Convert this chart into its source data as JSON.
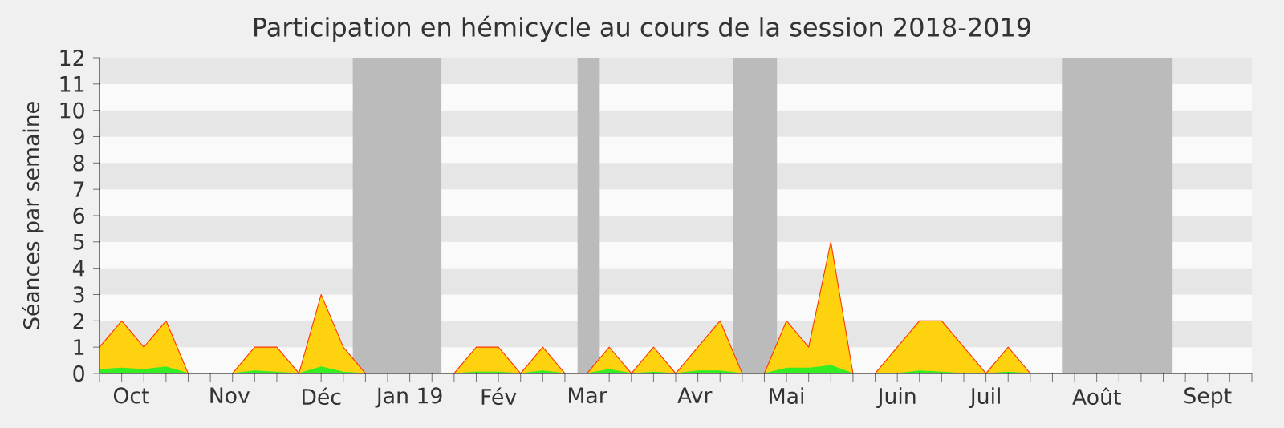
{
  "chart_data": {
    "type": "area",
    "title": "Participation en hémicycle au cours de la session 2018-2019",
    "ylabel": "Séances par semaine",
    "x": [
      "2018-10-01",
      "2018-10-08",
      "2018-10-15",
      "2018-10-22",
      "2018-10-29",
      "2018-11-05",
      "2018-11-12",
      "2018-11-19",
      "2018-11-26",
      "2018-12-03",
      "2018-12-10",
      "2018-12-17",
      "2018-12-24",
      "2018-12-31",
      "2019-01-07",
      "2019-01-14",
      "2019-01-21",
      "2019-01-28",
      "2019-02-04",
      "2019-02-11",
      "2019-02-18",
      "2019-02-25",
      "2019-03-04",
      "2019-03-11",
      "2019-03-18",
      "2019-03-25",
      "2019-04-01",
      "2019-04-08",
      "2019-04-15",
      "2019-04-22",
      "2019-04-29",
      "2019-05-06",
      "2019-05-13",
      "2019-05-20",
      "2019-05-27",
      "2019-06-03",
      "2019-06-10",
      "2019-06-17",
      "2019-06-24",
      "2019-07-01",
      "2019-07-08",
      "2019-07-15",
      "2019-07-22",
      "2019-07-29",
      "2019-08-05",
      "2019-08-12",
      "2019-08-19",
      "2019-08-26",
      "2019-09-02",
      "2019-09-09",
      "2019-09-16",
      "2019-09-23",
      "2019-09-30"
    ],
    "series": [
      {
        "color": "#ffd20f",
        "values": [
          1,
          2,
          1,
          2,
          0,
          0,
          0,
          1,
          1,
          0,
          3,
          1,
          0,
          0,
          0,
          0,
          0,
          1,
          1,
          0,
          1,
          0,
          0,
          1,
          0,
          1,
          0,
          1,
          2,
          0,
          0,
          2,
          1,
          5,
          0,
          0,
          1,
          2,
          2,
          1,
          0,
          1,
          0,
          0,
          0,
          0,
          0,
          0,
          0,
          0,
          0,
          0,
          0
        ]
      },
      {
        "color": "#33ee22",
        "values": [
          0.15,
          0.2,
          0.15,
          0.25,
          0,
          0,
          0,
          0.1,
          0.05,
          0,
          0.25,
          0.05,
          0,
          0,
          0,
          0,
          0,
          0.05,
          0.05,
          0,
          0.1,
          0,
          0,
          0.15,
          0,
          0.05,
          0,
          0.1,
          0.1,
          0,
          0,
          0.2,
          0.2,
          0.3,
          0,
          0,
          0,
          0.1,
          0.05,
          0,
          0,
          0.05,
          0,
          0,
          0,
          0,
          0,
          0,
          0,
          0,
          0,
          0,
          0
        ]
      }
    ],
    "xlim": [
      "2018-10-01",
      "2019-09-30"
    ],
    "ylim": [
      0,
      12
    ],
    "yticks": [
      0,
      1,
      2,
      3,
      4,
      5,
      6,
      7,
      8,
      9,
      10,
      11,
      12
    ],
    "xticks": [
      {
        "value": "2018-10-11",
        "label": "Oct"
      },
      {
        "value": "2018-11-11",
        "label": "Nov"
      },
      {
        "value": "2018-12-10",
        "label": "Déc"
      },
      {
        "value": "2019-01-07",
        "label": "Jan 19"
      },
      {
        "value": "2019-02-04",
        "label": "Fév"
      },
      {
        "value": "2019-03-04",
        "label": "Mar"
      },
      {
        "value": "2019-04-07",
        "label": "Avr"
      },
      {
        "value": "2019-05-06",
        "label": "Mai"
      },
      {
        "value": "2019-06-10",
        "label": "Juin"
      },
      {
        "value": "2019-07-08",
        "label": "Juil"
      },
      {
        "value": "2019-08-12",
        "label": "Août"
      },
      {
        "value": "2019-09-16",
        "label": "Sept"
      },
      {
        "value": "2018-10-01",
        "label": null
      },
      {
        "value": "2018-10-08",
        "label": null
      },
      {
        "value": "2018-10-15",
        "label": null
      },
      {
        "value": "2018-10-22",
        "label": null
      },
      {
        "value": "2018-10-29",
        "label": null
      },
      {
        "value": "2018-11-05",
        "label": null
      },
      {
        "value": "2018-11-12",
        "label": null
      },
      {
        "value": "2018-11-19",
        "label": null
      },
      {
        "value": "2018-11-26",
        "label": null
      },
      {
        "value": "2018-12-03",
        "label": null
      },
      {
        "value": "2018-12-10",
        "label": null
      },
      {
        "value": "2018-12-17",
        "label": null
      },
      {
        "value": "2018-12-24",
        "label": null
      },
      {
        "value": "2018-12-31",
        "label": null
      },
      {
        "value": "2019-01-07",
        "label": null
      },
      {
        "value": "2019-01-14",
        "label": null
      },
      {
        "value": "2019-01-21",
        "label": null
      },
      {
        "value": "2019-01-28",
        "label": null
      },
      {
        "value": "2019-02-04",
        "label": null
      },
      {
        "value": "2019-02-11",
        "label": null
      },
      {
        "value": "2019-02-18",
        "label": null
      },
      {
        "value": "2019-02-25",
        "label": null
      },
      {
        "value": "2019-03-04",
        "label": null
      },
      {
        "value": "2019-03-11",
        "label": null
      },
      {
        "value": "2019-03-18",
        "label": null
      },
      {
        "value": "2019-03-25",
        "label": null
      },
      {
        "value": "2019-04-01",
        "label": null
      },
      {
        "value": "2019-04-08",
        "label": null
      },
      {
        "value": "2019-04-15",
        "label": null
      },
      {
        "value": "2019-04-22",
        "label": null
      },
      {
        "value": "2019-04-29",
        "label": null
      },
      {
        "value": "2019-05-06",
        "label": null
      },
      {
        "value": "2019-05-13",
        "label": null
      },
      {
        "value": "2019-05-20",
        "label": null
      },
      {
        "value": "2019-05-27",
        "label": null
      },
      {
        "value": "2019-06-03",
        "label": null
      },
      {
        "value": "2019-06-10",
        "label": null
      },
      {
        "value": "2019-06-17",
        "label": null
      },
      {
        "value": "2019-06-24",
        "label": null
      },
      {
        "value": "2019-07-01",
        "label": null
      },
      {
        "value": "2019-07-08",
        "label": null
      },
      {
        "value": "2019-07-15",
        "label": null
      },
      {
        "value": "2019-07-22",
        "label": null
      },
      {
        "value": "2019-07-29",
        "label": null
      },
      {
        "value": "2019-08-05",
        "label": null
      },
      {
        "value": "2019-08-12",
        "label": null
      },
      {
        "value": "2019-08-19",
        "label": null
      },
      {
        "value": "2019-08-26",
        "label": null
      },
      {
        "value": "2019-09-02",
        "label": null
      },
      {
        "value": "2019-09-09",
        "label": null
      },
      {
        "value": "2019-09-16",
        "label": null
      },
      {
        "value": "2019-09-23",
        "label": null
      },
      {
        "value": "2019-09-30",
        "label": null
      }
    ],
    "bands": [
      {
        "axis": "x",
        "from": "2018-12-20",
        "to": "2019-01-17",
        "color": "#bbbbbb"
      },
      {
        "axis": "x",
        "from": "2019-03-01",
        "to": "2019-03-08",
        "color": "#bbbbbb"
      },
      {
        "axis": "x",
        "from": "2019-04-19",
        "to": "2019-05-03",
        "color": "#bbbbbb"
      },
      {
        "axis": "x",
        "from": "2019-08-01",
        "to": "2019-09-05",
        "color": "#bbbbbb"
      }
    ]
  }
}
